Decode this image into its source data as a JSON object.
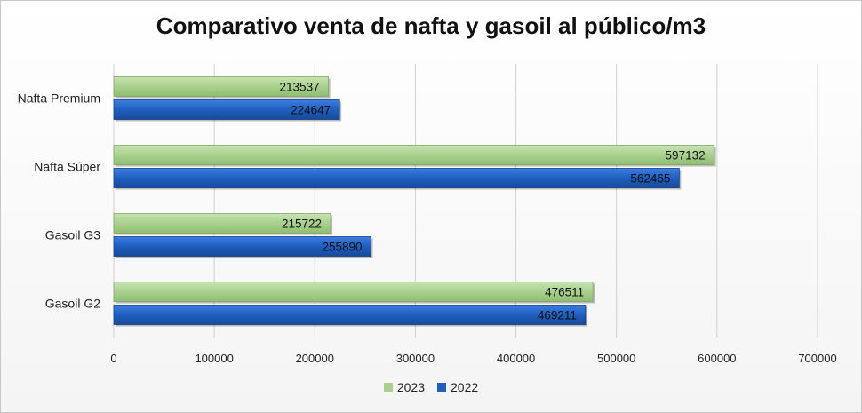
{
  "chart_data": {
    "type": "bar",
    "orientation": "horizontal",
    "title": "Comparativo venta de nafta y gasoil al público/m3",
    "categories": [
      "Nafta Premium",
      "Nafta Súper",
      "Gasoil G3",
      "Gasoil G2"
    ],
    "series": [
      {
        "name": "2023",
        "color": "#a9d18e",
        "values": [
          213537,
          597132,
          215722,
          476511
        ]
      },
      {
        "name": "2022",
        "color": "#1f5fbf",
        "values": [
          224647,
          562465,
          255890,
          469211
        ]
      }
    ],
    "xlim": [
      0,
      700000
    ],
    "xticks": [
      "0",
      "100000",
      "200000",
      "300000",
      "400000",
      "500000",
      "600000",
      "700000"
    ],
    "grid": true,
    "legend_position": "bottom"
  }
}
